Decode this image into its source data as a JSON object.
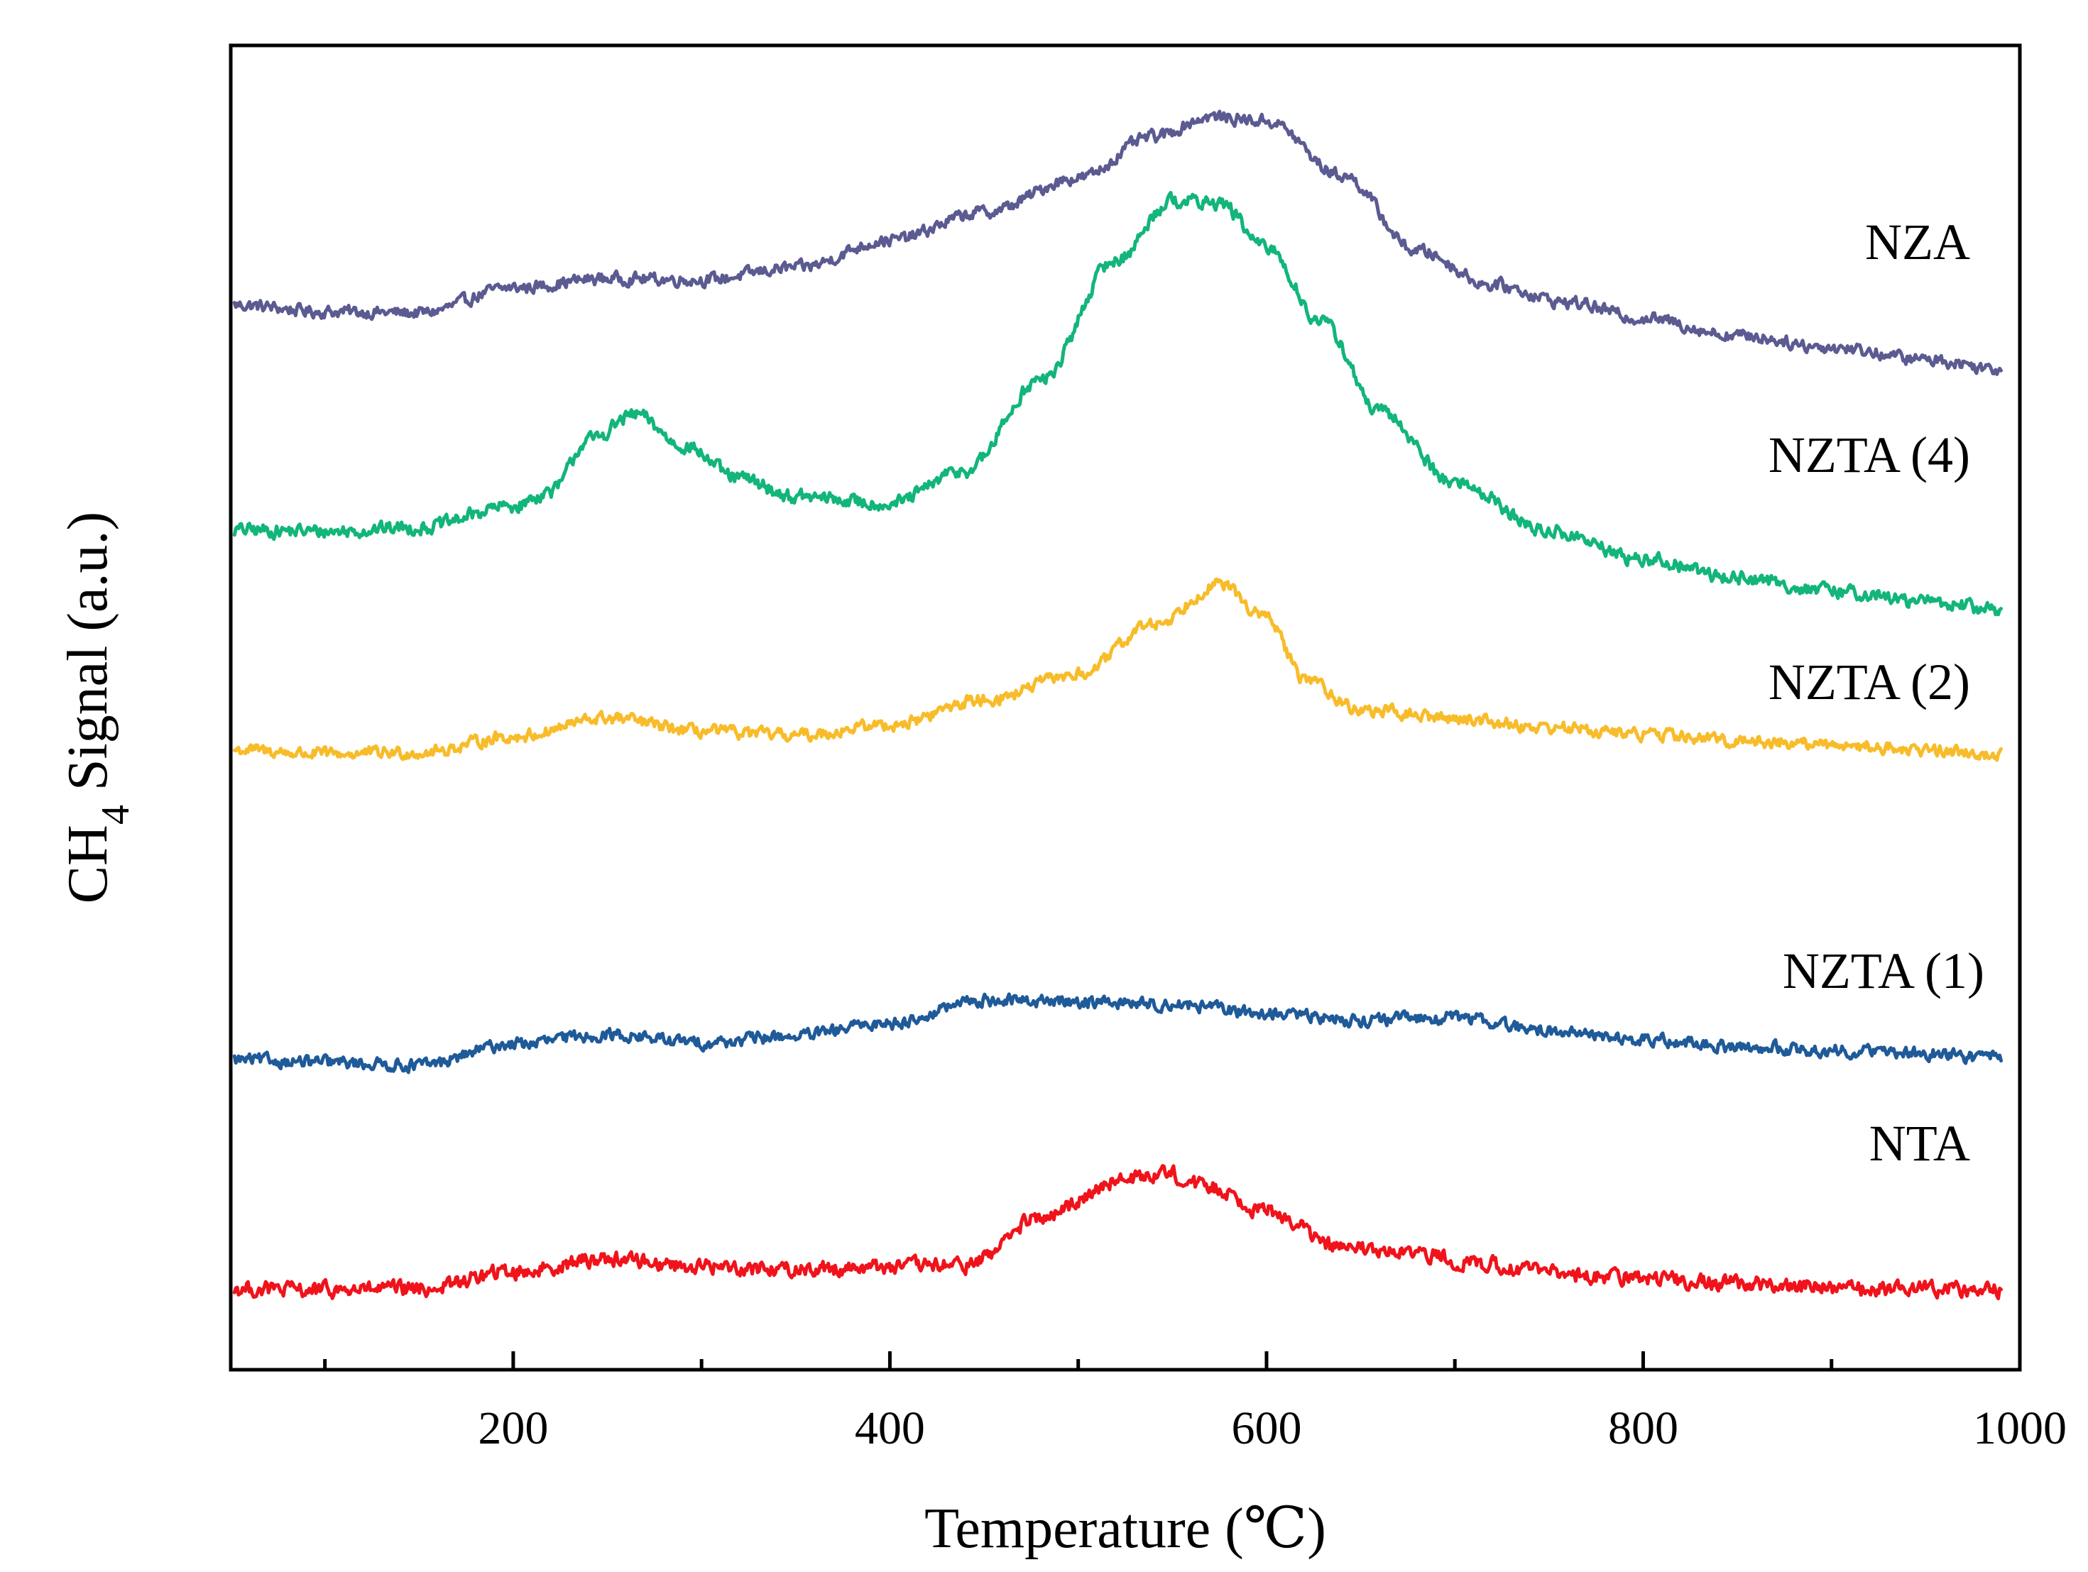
{
  "chart_data": {
    "type": "line",
    "title": "",
    "xlabel": "Temperature (℃)",
    "ylabel": "CH4 Signal (a.u.)",
    "ylabel_main": "CH",
    "ylabel_sub": "4",
    "ylabel_rest": " Signal (a.u.)",
    "xlim": [
      50,
      1000
    ],
    "ylim": [
      0,
      10
    ],
    "x_ticks": [
      200,
      400,
      600,
      800,
      1000
    ],
    "x_minor_ticks": [
      100,
      300,
      500,
      700,
      900
    ],
    "x_tick_labels": [
      "200",
      "400",
      "600",
      "800",
      "1000"
    ],
    "y_ticks_shown": false,
    "grid": false,
    "legend": "inline labels at right",
    "series": [
      {
        "name": "NZA",
        "color": "#5b5a91",
        "noise": 0.04,
        "x": [
          52,
          100,
          150,
          200,
          250,
          300,
          350,
          400,
          450,
          500,
          540,
          570,
          600,
          640,
          680,
          720,
          760,
          800,
          850,
          900,
          950,
          990
        ],
        "y": [
          8.04,
          7.99,
          7.98,
          8.17,
          8.24,
          8.23,
          8.32,
          8.53,
          8.74,
          9.0,
          9.31,
          9.46,
          9.43,
          9.02,
          8.45,
          8.19,
          8.06,
          7.94,
          7.81,
          7.72,
          7.63,
          7.56
        ]
      },
      {
        "name": "NZTA (4)",
        "color": "#12b57a",
        "noise": 0.045,
        "x": [
          52,
          100,
          150,
          200,
          220,
          240,
          265,
          290,
          320,
          350,
          400,
          440,
          480,
          520,
          550,
          575,
          600,
          630,
          660,
          700,
          750,
          800,
          850,
          900,
          950,
          990
        ],
        "y": [
          6.34,
          6.33,
          6.36,
          6.52,
          6.63,
          7.02,
          7.21,
          6.98,
          6.73,
          6.59,
          6.54,
          6.79,
          7.47,
          8.38,
          8.83,
          8.81,
          8.47,
          7.9,
          7.23,
          6.7,
          6.33,
          6.12,
          5.98,
          5.88,
          5.8,
          5.74
        ]
      },
      {
        "name": "NZTA (2)",
        "color": "#f8bc2a",
        "noise": 0.04,
        "x": [
          52,
          100,
          150,
          200,
          250,
          300,
          350,
          400,
          450,
          500,
          540,
          575,
          600,
          620,
          650,
          700,
          750,
          800,
          850,
          900,
          950,
          990
        ],
        "y": [
          4.68,
          4.65,
          4.66,
          4.78,
          4.92,
          4.82,
          4.79,
          4.87,
          5.06,
          5.25,
          5.63,
          5.93,
          5.68,
          5.22,
          4.98,
          4.92,
          4.85,
          4.8,
          4.75,
          4.72,
          4.68,
          4.65
        ]
      },
      {
        "name": "NZTA (1)",
        "color": "#1f5a99",
        "noise": 0.04,
        "x": [
          52,
          100,
          150,
          200,
          250,
          300,
          350,
          400,
          450,
          500,
          550,
          600,
          650,
          700,
          750,
          800,
          850,
          900,
          950,
          990
        ],
        "y": [
          2.34,
          2.32,
          2.3,
          2.46,
          2.53,
          2.47,
          2.52,
          2.62,
          2.79,
          2.78,
          2.76,
          2.69,
          2.64,
          2.66,
          2.56,
          2.49,
          2.44,
          2.41,
          2.39,
          2.35
        ]
      },
      {
        "name": "NTA",
        "color": "#f0131b",
        "noise": 0.05,
        "x": [
          52,
          100,
          150,
          200,
          250,
          300,
          350,
          400,
          440,
          480,
          520,
          545,
          570,
          600,
          640,
          680,
          720,
          760,
          800,
          850,
          900,
          950,
          990
        ],
        "y": [
          0.61,
          0.6,
          0.61,
          0.74,
          0.84,
          0.78,
          0.76,
          0.78,
          0.79,
          1.14,
          1.42,
          1.49,
          1.38,
          1.2,
          0.92,
          0.87,
          0.79,
          0.72,
          0.69,
          0.65,
          0.62,
          0.61,
          0.61
        ]
      }
    ]
  }
}
